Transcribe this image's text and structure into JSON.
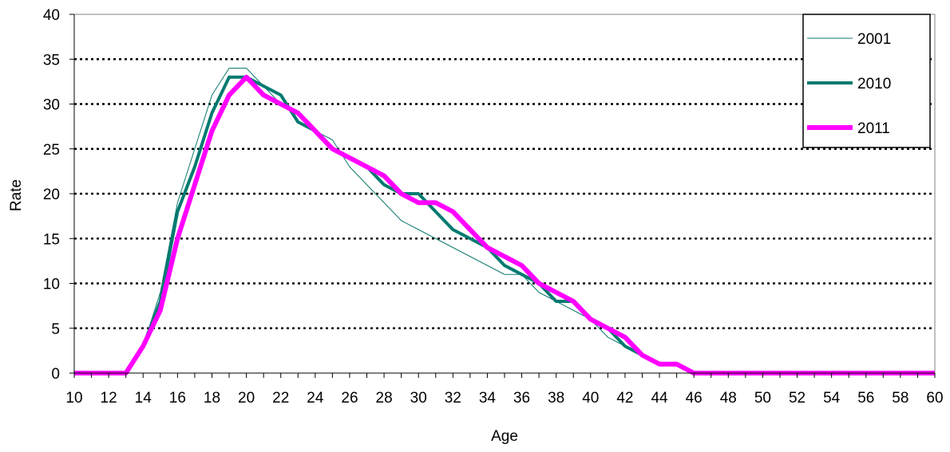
{
  "chart_data": {
    "type": "line",
    "title": "",
    "xlabel": "Age",
    "ylabel": "Rate",
    "xlim": [
      10,
      60
    ],
    "ylim": [
      0,
      40
    ],
    "x_ticks": [
      10,
      12,
      14,
      16,
      18,
      20,
      22,
      24,
      26,
      28,
      30,
      32,
      34,
      36,
      38,
      40,
      42,
      44,
      46,
      48,
      50,
      52,
      54,
      56,
      58,
      60
    ],
    "y_ticks": [
      0,
      5,
      10,
      15,
      20,
      25,
      30,
      35,
      40
    ],
    "grid": "horizontal dotted",
    "legend_position": "top-right",
    "x": [
      10,
      11,
      12,
      13,
      14,
      15,
      16,
      17,
      18,
      19,
      20,
      21,
      22,
      23,
      24,
      25,
      26,
      27,
      28,
      29,
      30,
      31,
      32,
      33,
      34,
      35,
      36,
      37,
      38,
      39,
      40,
      41,
      42,
      43,
      44,
      45,
      46,
      47,
      48,
      49,
      50,
      51,
      52,
      53,
      54,
      55,
      56,
      57,
      58,
      59,
      60
    ],
    "series": [
      {
        "name": "2001",
        "color": "#0e7a6e",
        "line_style": "thin",
        "values": [
          0,
          0,
          0,
          0,
          3,
          9,
          19,
          25,
          31,
          34,
          34,
          32,
          30,
          29,
          27,
          26,
          23,
          21,
          19,
          17,
          16,
          15,
          14,
          13,
          12,
          11,
          11,
          9,
          8,
          7,
          6,
          4,
          3,
          2,
          1,
          1,
          0,
          0,
          0,
          0,
          0,
          0,
          0,
          0,
          0,
          0,
          0,
          0,
          0,
          0,
          0
        ]
      },
      {
        "name": "2010",
        "color": "#007a70",
        "line_style": "medium",
        "values": [
          0,
          0,
          0,
          0,
          3,
          8,
          18,
          23,
          29,
          33,
          33,
          32,
          31,
          28,
          27,
          25,
          24,
          23,
          21,
          20,
          20,
          18,
          16,
          15,
          14,
          12,
          11,
          10,
          8,
          8,
          6,
          5,
          3,
          2,
          1,
          1,
          0,
          0,
          0,
          0,
          0,
          0,
          0,
          0,
          0,
          0,
          0,
          0,
          0,
          0,
          0
        ]
      },
      {
        "name": "2011",
        "color": "#ff00ff",
        "line_style": "thick",
        "values": [
          0,
          0,
          0,
          0,
          3,
          7,
          15,
          21,
          27,
          31,
          33,
          31,
          30,
          29,
          27,
          25,
          24,
          23,
          22,
          20,
          19,
          19,
          18,
          16,
          14,
          13,
          12,
          10,
          9,
          8,
          6,
          5,
          4,
          2,
          1,
          1,
          0,
          0,
          0,
          0,
          0,
          0,
          0,
          0,
          0,
          0,
          0,
          0,
          0,
          0,
          0
        ]
      }
    ]
  }
}
